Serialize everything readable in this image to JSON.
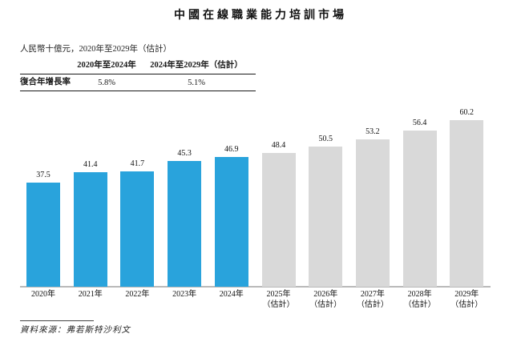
{
  "title": "中國在線職業能力培訓市場",
  "subtitle": "人民幣十億元，2020年至2029年（估計）",
  "cagr_table": {
    "row_header_blank": "",
    "col_headers": [
      "2020年至2024年",
      "2024年至2029年（估計）"
    ],
    "row_label": "復合年增長率",
    "values": [
      "5.8%",
      "5.1%"
    ]
  },
  "source": "資料來源：弗若斯特沙利文",
  "colors": {
    "actual_bar": "#29A3DC",
    "estimate_bar": "#D9D9D9",
    "axis_line": "#B9B9B9",
    "text": "#111111"
  },
  "chart_data": {
    "type": "bar",
    "title": "中國在線職業能力培訓市場",
    "unit_label": "人民幣十億元",
    "categories": [
      "2020年",
      "2021年",
      "2022年",
      "2023年",
      "2024年",
      "2025年\n（估計）",
      "2026年\n（估計）",
      "2027年\n（估計）",
      "2028年\n（估計）",
      "2029年\n（估計）"
    ],
    "values": [
      37.5,
      41.4,
      41.7,
      45.3,
      46.9,
      48.4,
      50.5,
      53.2,
      56.4,
      60.2
    ],
    "bar_types": [
      "actual",
      "actual",
      "actual",
      "actual",
      "actual",
      "estimate",
      "estimate",
      "estimate",
      "estimate",
      "estimate"
    ],
    "value_labels_shown": true,
    "ylim": [
      0,
      65
    ],
    "grid": false,
    "legend": "none"
  }
}
